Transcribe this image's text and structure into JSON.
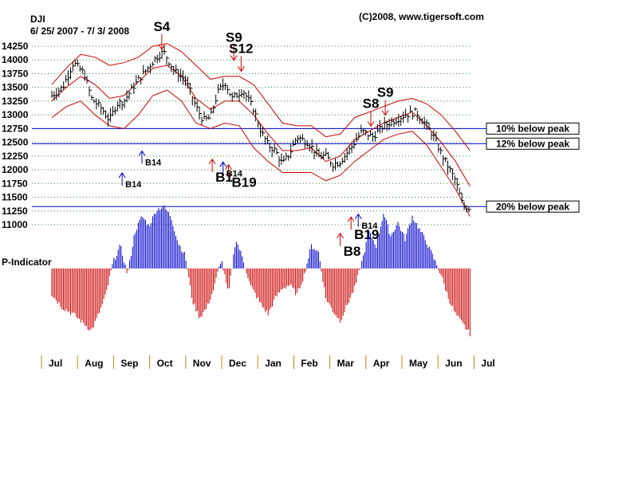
{
  "chart_data": {
    "type": "ohlc-bar",
    "title": "DJI",
    "subtitle": "6/ 25/ 2007 - 7/ 3/ 2008",
    "copyright": "(C)2008, www.tigersoft.com",
    "y_ticks": [
      "14250",
      "14000",
      "13750",
      "13500",
      "13250",
      "13000",
      "12750",
      "12500",
      "12250",
      "12000",
      "11750",
      "11500",
      "11250",
      "11000"
    ],
    "y_tick_values": [
      14250,
      14000,
      13750,
      13500,
      13250,
      13000,
      12750,
      12500,
      12250,
      12000,
      11750,
      11500,
      11250,
      11000
    ],
    "ylim": [
      11000,
      14250
    ],
    "months": [
      "Jul",
      "Aug",
      "Sep",
      "Oct",
      "Nov",
      "Dec",
      "Jan",
      "Feb",
      "Mar",
      "Apr",
      "May",
      "Jun",
      "Jul"
    ],
    "month_positions": [
      0,
      1,
      2,
      3,
      4,
      5,
      6,
      7,
      8,
      9,
      10,
      11,
      12
    ],
    "peak_lines": [
      {
        "label": "10% below peak",
        "value": 12750
      },
      {
        "label": "12% below peak",
        "value": 12475
      },
      {
        "label": "20% below peak",
        "value": 11330
      }
    ],
    "closes": [
      [
        0,
        13350
      ],
      [
        0.3,
        13500
      ],
      [
        0.6,
        13950
      ],
      [
        0.9,
        13750
      ],
      [
        1.1,
        13300
      ],
      [
        1.4,
        13100
      ],
      [
        1.6,
        12900
      ],
      [
        1.8,
        13200
      ],
      [
        2.0,
        13250
      ],
      [
        2.3,
        13550
      ],
      [
        2.6,
        13800
      ],
      [
        2.9,
        14050
      ],
      [
        3.1,
        14150
      ],
      [
        3.4,
        13800
      ],
      [
        3.7,
        13650
      ],
      [
        4.0,
        13150
      ],
      [
        4.2,
        12900
      ],
      [
        4.4,
        12950
      ],
      [
        4.6,
        13400
      ],
      [
        4.8,
        13600
      ],
      [
        5.0,
        13300
      ],
      [
        5.3,
        13450
      ],
      [
        5.6,
        13100
      ],
      [
        5.8,
        12700
      ],
      [
        6.0,
        12450
      ],
      [
        6.2,
        12350
      ],
      [
        6.4,
        12100
      ],
      [
        6.6,
        12300
      ],
      [
        6.8,
        12600
      ],
      [
        7.1,
        12500
      ],
      [
        7.4,
        12250
      ],
      [
        7.6,
        12250
      ],
      [
        7.8,
        12100
      ],
      [
        8.0,
        12150
      ],
      [
        8.3,
        12400
      ],
      [
        8.6,
        12700
      ],
      [
        8.9,
        12600
      ],
      [
        9.2,
        12800
      ],
      [
        9.5,
        12900
      ],
      [
        9.8,
        13000
      ],
      [
        10.1,
        13050
      ],
      [
        10.4,
        12800
      ],
      [
        10.6,
        12600
      ],
      [
        10.8,
        12300
      ],
      [
        11.0,
        12050
      ],
      [
        11.2,
        11800
      ],
      [
        11.4,
        11350
      ],
      [
        11.6,
        11300
      ]
    ],
    "upper_band": [
      [
        0,
        13550
      ],
      [
        0.4,
        13850
      ],
      [
        0.8,
        14100
      ],
      [
        1.2,
        14050
      ],
      [
        1.6,
        13900
      ],
      [
        2.0,
        13950
      ],
      [
        2.4,
        14050
      ],
      [
        2.8,
        14250
      ],
      [
        3.2,
        14300
      ],
      [
        3.6,
        14150
      ],
      [
        4.0,
        13900
      ],
      [
        4.4,
        13650
      ],
      [
        4.8,
        13700
      ],
      [
        5.2,
        13700
      ],
      [
        5.6,
        13550
      ],
      [
        6.0,
        13200
      ],
      [
        6.4,
        12850
      ],
      [
        6.8,
        12800
      ],
      [
        7.2,
        12800
      ],
      [
        7.6,
        12600
      ],
      [
        8.0,
        12650
      ],
      [
        8.4,
        12950
      ],
      [
        8.8,
        13050
      ],
      [
        9.2,
        13150
      ],
      [
        9.6,
        13250
      ],
      [
        10.0,
        13300
      ],
      [
        10.4,
        13200
      ],
      [
        10.8,
        13000
      ],
      [
        11.2,
        12700
      ],
      [
        11.6,
        12350
      ]
    ],
    "mid_band": [
      [
        0,
        13250
      ],
      [
        0.4,
        13500
      ],
      [
        0.8,
        13700
      ],
      [
        1.2,
        13550
      ],
      [
        1.6,
        13300
      ],
      [
        2.0,
        13350
      ],
      [
        2.4,
        13600
      ],
      [
        2.8,
        13850
      ],
      [
        3.2,
        13900
      ],
      [
        3.6,
        13700
      ],
      [
        4.0,
        13300
      ],
      [
        4.4,
        13100
      ],
      [
        4.8,
        13250
      ],
      [
        5.2,
        13250
      ],
      [
        5.6,
        13000
      ],
      [
        6.0,
        12650
      ],
      [
        6.4,
        12350
      ],
      [
        6.8,
        12350
      ],
      [
        7.2,
        12400
      ],
      [
        7.6,
        12150
      ],
      [
        8.0,
        12250
      ],
      [
        8.4,
        12550
      ],
      [
        8.8,
        12700
      ],
      [
        9.2,
        12850
      ],
      [
        9.6,
        12950
      ],
      [
        10.0,
        13050
      ],
      [
        10.4,
        12800
      ],
      [
        10.8,
        12500
      ],
      [
        11.2,
        12150
      ],
      [
        11.6,
        11700
      ]
    ],
    "lower_band": [
      [
        0,
        12950
      ],
      [
        0.4,
        13150
      ],
      [
        0.8,
        13250
      ],
      [
        1.2,
        13000
      ],
      [
        1.6,
        12800
      ],
      [
        2.0,
        12750
      ],
      [
        2.4,
        13000
      ],
      [
        2.8,
        13350
      ],
      [
        3.2,
        13450
      ],
      [
        3.6,
        13250
      ],
      [
        4.0,
        12850
      ],
      [
        4.4,
        12750
      ],
      [
        4.8,
        12850
      ],
      [
        5.2,
        12800
      ],
      [
        5.6,
        12400
      ],
      [
        6.0,
        12150
      ],
      [
        6.4,
        11950
      ],
      [
        6.8,
        11950
      ],
      [
        7.2,
        11950
      ],
      [
        7.6,
        11800
      ],
      [
        8.0,
        11900
      ],
      [
        8.4,
        12150
      ],
      [
        8.8,
        12350
      ],
      [
        9.2,
        12550
      ],
      [
        9.6,
        12650
      ],
      [
        10.0,
        12700
      ],
      [
        10.4,
        12450
      ],
      [
        10.8,
        12050
      ],
      [
        11.2,
        11650
      ],
      [
        11.6,
        11150
      ]
    ],
    "indicator_label": "P-Indicator",
    "indicator_range": [
      -1,
      1
    ],
    "indicator": [
      [
        0.0,
        -0.4
      ],
      [
        0.3,
        -0.6
      ],
      [
        0.6,
        -0.7
      ],
      [
        0.9,
        -0.85
      ],
      [
        1.1,
        -0.95
      ],
      [
        1.3,
        -0.7
      ],
      [
        1.5,
        -0.4
      ],
      [
        1.7,
        0.1
      ],
      [
        1.9,
        0.35
      ],
      [
        2.1,
        -0.1
      ],
      [
        2.3,
        0.55
      ],
      [
        2.5,
        0.8
      ],
      [
        2.7,
        0.65
      ],
      [
        2.9,
        0.9
      ],
      [
        3.1,
        0.95
      ],
      [
        3.3,
        0.8
      ],
      [
        3.5,
        0.4
      ],
      [
        3.7,
        0.2
      ],
      [
        3.9,
        -0.5
      ],
      [
        4.1,
        -0.75
      ],
      [
        4.3,
        -0.6
      ],
      [
        4.5,
        -0.3
      ],
      [
        4.7,
        0.15
      ],
      [
        4.9,
        -0.4
      ],
      [
        5.1,
        0.45
      ],
      [
        5.3,
        0.15
      ],
      [
        5.5,
        -0.25
      ],
      [
        5.8,
        -0.55
      ],
      [
        6.0,
        -0.7
      ],
      [
        6.2,
        -0.45
      ],
      [
        6.4,
        -0.3
      ],
      [
        6.6,
        -0.25
      ],
      [
        6.8,
        -0.4
      ],
      [
        7.0,
        -0.1
      ],
      [
        7.2,
        0.35
      ],
      [
        7.4,
        0.25
      ],
      [
        7.6,
        -0.45
      ],
      [
        7.8,
        -0.65
      ],
      [
        8.0,
        -0.8
      ],
      [
        8.2,
        -0.55
      ],
      [
        8.4,
        -0.3
      ],
      [
        8.6,
        0.1
      ],
      [
        8.8,
        0.55
      ],
      [
        9.0,
        0.35
      ],
      [
        9.2,
        0.85
      ],
      [
        9.4,
        0.5
      ],
      [
        9.6,
        0.7
      ],
      [
        9.8,
        0.45
      ],
      [
        10.0,
        0.8
      ],
      [
        10.2,
        0.6
      ],
      [
        10.4,
        0.4
      ],
      [
        10.6,
        0.15
      ],
      [
        10.8,
        -0.1
      ],
      [
        11.0,
        -0.45
      ],
      [
        11.2,
        -0.7
      ],
      [
        11.4,
        -0.85
      ],
      [
        11.6,
        -1.0
      ]
    ],
    "signals": [
      {
        "label": "S4",
        "x": 3.05,
        "y": 14150,
        "kind": "sell",
        "size": "big"
      },
      {
        "label": "S9",
        "x": 5.05,
        "y": 13950,
        "kind": "sell",
        "size": "big"
      },
      {
        "label": "S12",
        "x": 5.25,
        "y": 13750,
        "kind": "sell",
        "size": "big"
      },
      {
        "label": "S8",
        "x": 8.85,
        "y": 12750,
        "kind": "sell",
        "size": "big"
      },
      {
        "label": "S9",
        "x": 9.25,
        "y": 12950,
        "kind": "sell",
        "size": "big"
      },
      {
        "label": "B14",
        "x": 1.95,
        "y": 12000,
        "kind": "buy",
        "size": "small"
      },
      {
        "label": "B14",
        "x": 2.5,
        "y": 12400,
        "kind": "buy",
        "size": "small"
      },
      {
        "label": "B14",
        "x": 4.75,
        "y": 12200,
        "kind": "buy",
        "size": "small"
      },
      {
        "label": "B1",
        "x": 4.45,
        "y": 12250,
        "kind": "buy",
        "size": "big"
      },
      {
        "label": "B19",
        "x": 4.9,
        "y": 12150,
        "kind": "buy",
        "size": "big"
      },
      {
        "label": "B14",
        "x": 8.5,
        "y": 11250,
        "kind": "buy",
        "size": "small"
      },
      {
        "label": "B19",
        "x": 8.3,
        "y": 11200,
        "kind": "buy",
        "size": "big"
      },
      {
        "label": "B8",
        "x": 8.0,
        "y": 10900,
        "kind": "buy",
        "size": "big"
      }
    ]
  }
}
